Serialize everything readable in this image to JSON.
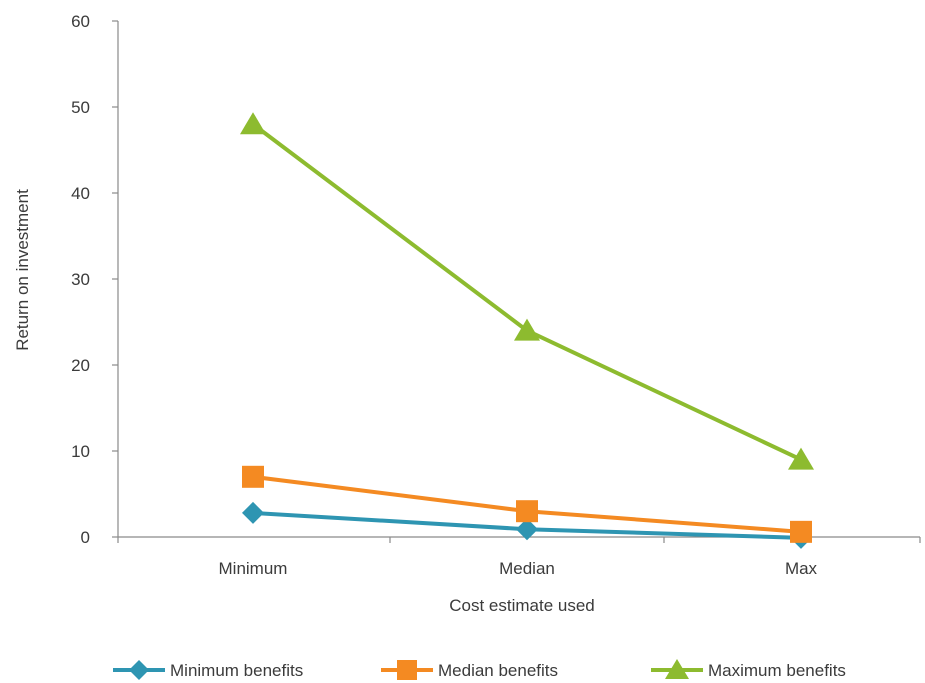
{
  "chart_data": {
    "type": "line",
    "categories": [
      "Minimum",
      "Median",
      "Max"
    ],
    "xlabel": "Cost estimate used",
    "ylabel": "Return on investment",
    "ylim": [
      0,
      60
    ],
    "yticks": [
      0,
      10,
      20,
      30,
      40,
      50,
      60
    ],
    "grid": false,
    "legend_position": "bottom",
    "series": [
      {
        "name": "Minimum benefits",
        "values": [
          2.8,
          0.9,
          -0.1
        ],
        "color": "#2e95b2",
        "marker": "diamond"
      },
      {
        "name": "Median benefits",
        "values": [
          7.0,
          3.0,
          0.6
        ],
        "color": "#f48a22",
        "marker": "square"
      },
      {
        "name": "Maximum benefits",
        "values": [
          48.0,
          24.0,
          9.0
        ],
        "color": "#8dbb2f",
        "marker": "triangle"
      }
    ]
  }
}
